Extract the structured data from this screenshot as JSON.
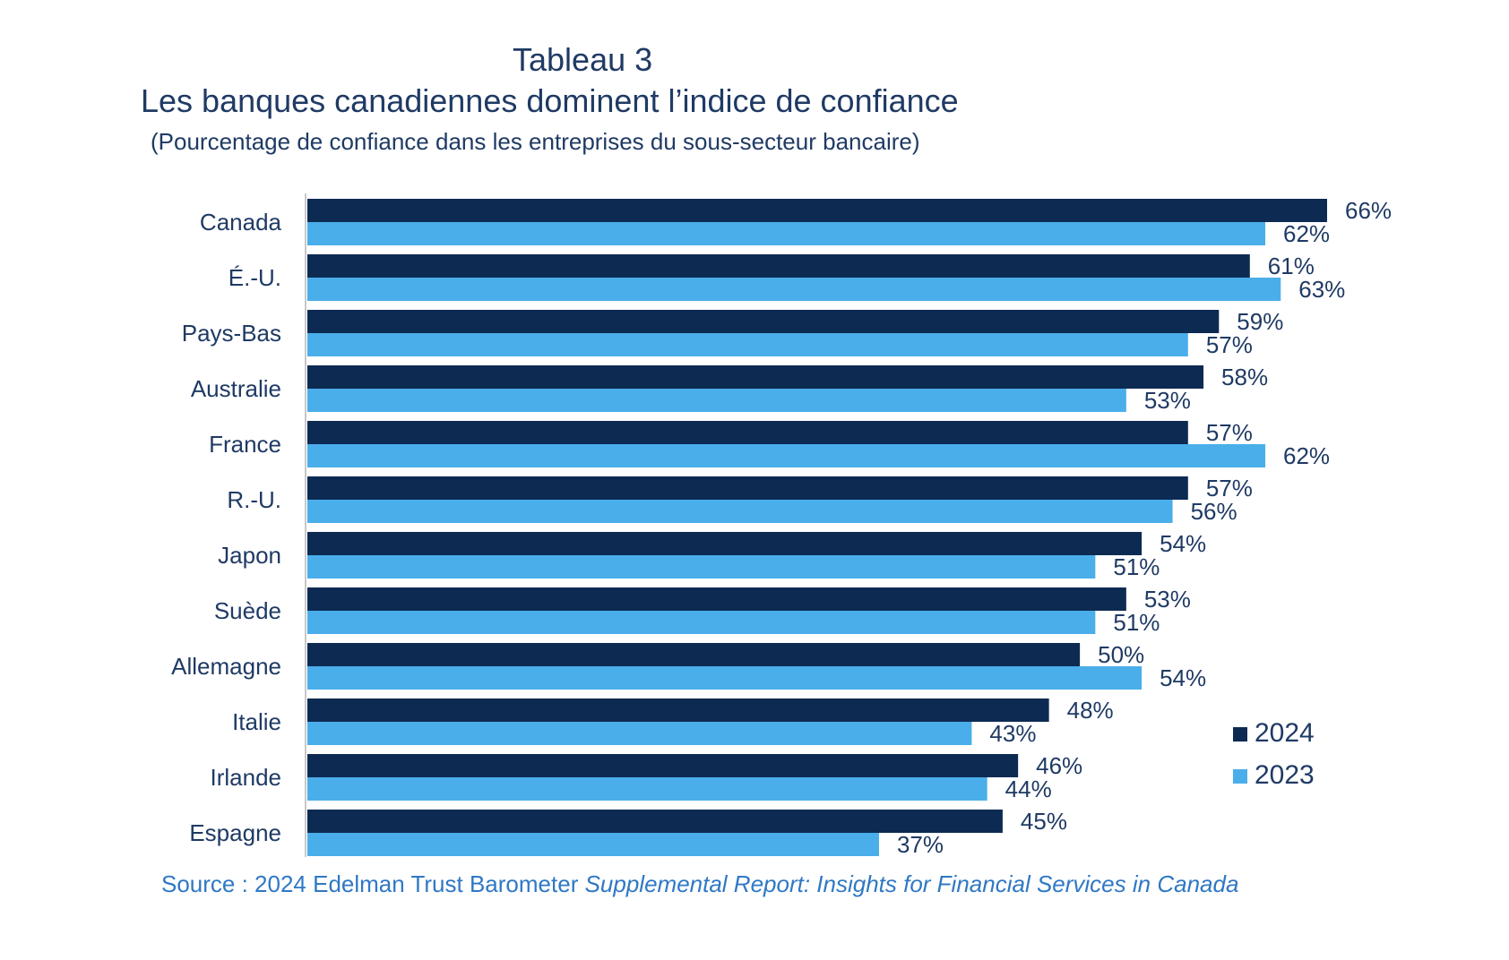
{
  "title": "Tableau 3",
  "subtitle": "Les banques canadiennes dominent l’indice de confiance",
  "note": "(Pourcentage de confiance dans les entreprises du sous-secteur bancaire)",
  "source": {
    "prefix": "Source : 2024 Edelman Trust Barometer ",
    "italic": "Supplemental Report: Insights for Financial Services in Canada"
  },
  "colors": {
    "series_2024": "#0d2a52",
    "series_2023": "#4aaeea",
    "text": "#1f3a64",
    "axis": "#c8c8c8"
  },
  "chart_data": {
    "type": "bar",
    "orientation": "horizontal",
    "categories": [
      "Canada",
      "É.-U.",
      "Pays-Bas",
      "Australie",
      "France",
      "R.-U.",
      "Japon",
      "Suède",
      "Allemagne",
      "Italie",
      "Irlande",
      "Espagne"
    ],
    "series": [
      {
        "name": "2024",
        "values": [
          66,
          61,
          59,
          58,
          57,
          57,
          54,
          53,
          50,
          48,
          46,
          45
        ],
        "labels": [
          "66%",
          "61%",
          "59%",
          "58%",
          "57%",
          "57%",
          "54%",
          "53%",
          "50%",
          "48%",
          "46%",
          "45%"
        ]
      },
      {
        "name": "2023",
        "values": [
          62,
          63,
          57,
          53,
          62,
          56,
          51,
          51,
          54,
          43,
          44,
          37
        ],
        "labels": [
          "62%",
          "63%",
          "57%",
          "53%",
          "62%",
          "56%",
          "51%",
          "51%",
          "54%",
          "43%",
          "44%",
          "37%"
        ]
      }
    ],
    "unit": "%",
    "xlim": [
      0,
      66
    ],
    "legend_position": "bottom-right",
    "grid": false
  }
}
